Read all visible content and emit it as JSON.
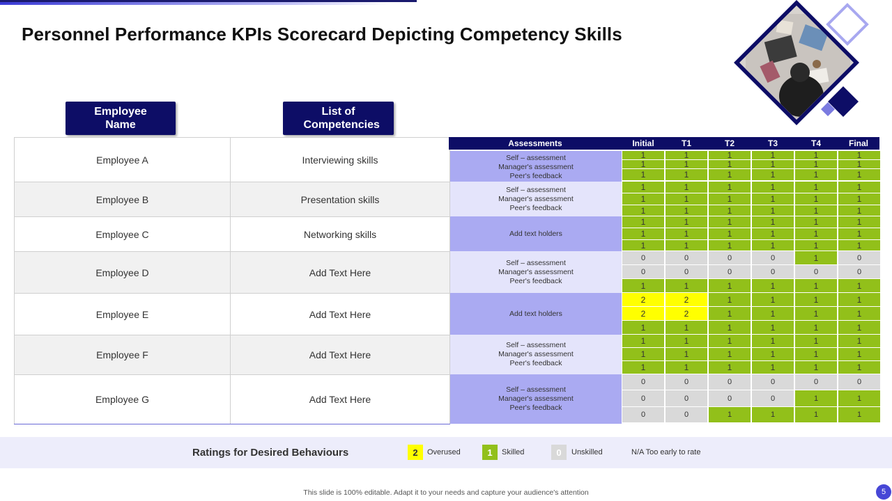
{
  "title": "Personnel Performance KPIs Scorecard Depicting Competency Skills",
  "headers": {
    "employee_name": "Employee Name",
    "competencies": "List of Competencies"
  },
  "assessment_headers": [
    "Assessments",
    "Initial",
    "T1",
    "T2",
    "T3",
    "T4",
    "Final"
  ],
  "assessment_lines": {
    "self": "Self – assessment",
    "manager": "Manager's assessment",
    "peer": "Peer's feedback",
    "placeholder": "Add text holders"
  },
  "rows": [
    {
      "employee": "Employee A",
      "competency": "Interviewing skills",
      "assessment_type": "three-line",
      "scores": [
        [
          "1",
          "1",
          "1",
          "1",
          "1",
          "1"
        ],
        [
          "1",
          "1",
          "1",
          "1",
          "1",
          "1"
        ],
        [
          "1",
          "1",
          "1",
          "1",
          "1",
          "1"
        ]
      ]
    },
    {
      "employee": "Employee B",
      "competency": "Presentation skills",
      "assessment_type": "three-line",
      "scores": [
        [
          "1",
          "1",
          "1",
          "1",
          "1",
          "1"
        ],
        [
          "1",
          "1",
          "1",
          "1",
          "1",
          "1"
        ],
        [
          "1",
          "1",
          "1",
          "1",
          "1",
          "1"
        ]
      ]
    },
    {
      "employee": "Employee C",
      "competency": "Networking skills",
      "assessment_type": "placeholder",
      "scores": [
        [
          "1",
          "1",
          "1",
          "1",
          "1",
          "1"
        ],
        [
          "1",
          "1",
          "1",
          "1",
          "1",
          "1"
        ],
        [
          "1",
          "1",
          "1",
          "1",
          "1",
          "1"
        ]
      ]
    },
    {
      "employee": "Employee D",
      "competency": "Add Text Here",
      "assessment_type": "three-line",
      "scores": [
        [
          "0",
          "0",
          "0",
          "0",
          "1",
          "0"
        ],
        [
          "0",
          "0",
          "0",
          "0",
          "0",
          "0"
        ],
        [
          "1",
          "1",
          "1",
          "1",
          "1",
          "1"
        ]
      ]
    },
    {
      "employee": "Employee E",
      "competency": "Add Text Here",
      "assessment_type": "placeholder",
      "scores": [
        [
          "2",
          "2",
          "1",
          "1",
          "1",
          "1"
        ],
        [
          "2",
          "2",
          "1",
          "1",
          "1",
          "1"
        ],
        [
          "1",
          "1",
          "1",
          "1",
          "1",
          "1"
        ]
      ]
    },
    {
      "employee": "Employee F",
      "competency": "Add Text Here",
      "assessment_type": "three-line",
      "scores": [
        [
          "1",
          "1",
          "1",
          "1",
          "1",
          "1"
        ],
        [
          "1",
          "1",
          "1",
          "1",
          "1",
          "1"
        ],
        [
          "1",
          "1",
          "1",
          "1",
          "1",
          "1"
        ]
      ]
    },
    {
      "employee": "Employee G",
      "competency": "Add Text Here",
      "assessment_type": "three-line",
      "scores": [
        [
          "0",
          "0",
          "0",
          "0",
          "0",
          "0"
        ],
        [
          "0",
          "0",
          "0",
          "0",
          "1",
          "1"
        ],
        [
          "0",
          "0",
          "1",
          "1",
          "1",
          "1"
        ]
      ]
    }
  ],
  "legend": {
    "title": "Ratings for Desired Behaviours",
    "items": [
      {
        "value": "2",
        "label": "Overused",
        "color": "#ffff00"
      },
      {
        "value": "1",
        "label": "Skilled",
        "color": "#92c01a"
      },
      {
        "value": "0",
        "label": "Unskilled",
        "color": "#d9d9d9"
      }
    ],
    "na_text": "N/A Too early to rate"
  },
  "footer": "This slide is 100% editable. Adapt it to your needs and capture your audience's attention",
  "page_number": "5",
  "colors": {
    "navy": "#0d0d66",
    "green": "#92c01a",
    "yellow": "#ffff00",
    "grey": "#d9d9d9",
    "lavender_dark": "#aaaaf2",
    "lavender_light": "#e4e4fb"
  }
}
